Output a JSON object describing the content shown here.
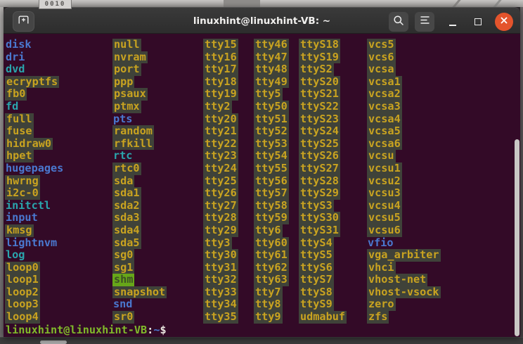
{
  "desktop": {
    "wallpaper_label": "0010"
  },
  "window": {
    "title": "linuxhint@linuxhint-VB: ~"
  },
  "colors": {
    "terminal_bg": "#330a27",
    "titlebar_top": "#3a3a3a",
    "titlebar_bottom": "#2d2d2d",
    "close_button": "#e4542c",
    "dir": "#4a78cf",
    "link": "#2aa5ad",
    "device": "#c9a320",
    "device_bg": "#3f4239",
    "ow_fg": "#3c5024",
    "ow_bg": "#67a619",
    "prompt_green": "#80b92a",
    "prompt_fg": "#e9e5df"
  },
  "terminal": {
    "type_legend": {
      "d": "directory",
      "l": "symlink",
      "b": "device",
      "o": "world-writable-dir"
    },
    "columns": [
      {
        "entries": [
          {
            "text": "disk",
            "type": "d"
          },
          {
            "text": "dri",
            "type": "d"
          },
          {
            "text": "dvd",
            "type": "l"
          },
          {
            "text": "ecryptfs",
            "type": "b"
          },
          {
            "text": "fb0",
            "type": "b"
          },
          {
            "text": "fd",
            "type": "l"
          },
          {
            "text": "full",
            "type": "b"
          },
          {
            "text": "fuse",
            "type": "b"
          },
          {
            "text": "hidraw0",
            "type": "b"
          },
          {
            "text": "hpet",
            "type": "b"
          },
          {
            "text": "hugepages",
            "type": "d"
          },
          {
            "text": "hwrng",
            "type": "b"
          },
          {
            "text": "i2c-0",
            "type": "b"
          },
          {
            "text": "initctl",
            "type": "l"
          },
          {
            "text": "input",
            "type": "d"
          },
          {
            "text": "kmsg",
            "type": "b"
          },
          {
            "text": "lightnvm",
            "type": "d"
          },
          {
            "text": "log",
            "type": "l"
          },
          {
            "text": "loop0",
            "type": "b"
          },
          {
            "text": "loop1",
            "type": "b"
          },
          {
            "text": "loop2",
            "type": "b"
          },
          {
            "text": "loop3",
            "type": "b"
          },
          {
            "text": "loop4",
            "type": "b"
          }
        ]
      },
      {
        "entries": [
          {
            "text": "null",
            "type": "b"
          },
          {
            "text": "nvram",
            "type": "b"
          },
          {
            "text": "port",
            "type": "b"
          },
          {
            "text": "ppp",
            "type": "b"
          },
          {
            "text": "psaux",
            "type": "b"
          },
          {
            "text": "ptmx",
            "type": "b"
          },
          {
            "text": "pts",
            "type": "d"
          },
          {
            "text": "random",
            "type": "b"
          },
          {
            "text": "rfkill",
            "type": "b"
          },
          {
            "text": "rtc",
            "type": "l"
          },
          {
            "text": "rtc0",
            "type": "b"
          },
          {
            "text": "sda",
            "type": "b"
          },
          {
            "text": "sda1",
            "type": "b"
          },
          {
            "text": "sda2",
            "type": "b"
          },
          {
            "text": "sda3",
            "type": "b"
          },
          {
            "text": "sda4",
            "type": "b"
          },
          {
            "text": "sda5",
            "type": "b"
          },
          {
            "text": "sg0",
            "type": "b"
          },
          {
            "text": "sg1",
            "type": "b"
          },
          {
            "text": "shm",
            "type": "o"
          },
          {
            "text": "snapshot",
            "type": "b"
          },
          {
            "text": "snd",
            "type": "d"
          },
          {
            "text": "sr0",
            "type": "b"
          }
        ]
      },
      {
        "entries": [
          {
            "text": "tty15",
            "type": "b"
          },
          {
            "text": "tty16",
            "type": "b"
          },
          {
            "text": "tty17",
            "type": "b"
          },
          {
            "text": "tty18",
            "type": "b"
          },
          {
            "text": "tty19",
            "type": "b"
          },
          {
            "text": "tty2",
            "type": "b"
          },
          {
            "text": "tty20",
            "type": "b"
          },
          {
            "text": "tty21",
            "type": "b"
          },
          {
            "text": "tty22",
            "type": "b"
          },
          {
            "text": "tty23",
            "type": "b"
          },
          {
            "text": "tty24",
            "type": "b"
          },
          {
            "text": "tty25",
            "type": "b"
          },
          {
            "text": "tty26",
            "type": "b"
          },
          {
            "text": "tty27",
            "type": "b"
          },
          {
            "text": "tty28",
            "type": "b"
          },
          {
            "text": "tty29",
            "type": "b"
          },
          {
            "text": "tty3",
            "type": "b"
          },
          {
            "text": "tty30",
            "type": "b"
          },
          {
            "text": "tty31",
            "type": "b"
          },
          {
            "text": "tty32",
            "type": "b"
          },
          {
            "text": "tty33",
            "type": "b"
          },
          {
            "text": "tty34",
            "type": "b"
          },
          {
            "text": "tty35",
            "type": "b"
          }
        ]
      },
      {
        "entries": [
          {
            "text": "tty46",
            "type": "b"
          },
          {
            "text": "tty47",
            "type": "b"
          },
          {
            "text": "tty48",
            "type": "b"
          },
          {
            "text": "tty49",
            "type": "b"
          },
          {
            "text": "tty5",
            "type": "b"
          },
          {
            "text": "tty50",
            "type": "b"
          },
          {
            "text": "tty51",
            "type": "b"
          },
          {
            "text": "tty52",
            "type": "b"
          },
          {
            "text": "tty53",
            "type": "b"
          },
          {
            "text": "tty54",
            "type": "b"
          },
          {
            "text": "tty55",
            "type": "b"
          },
          {
            "text": "tty56",
            "type": "b"
          },
          {
            "text": "tty57",
            "type": "b"
          },
          {
            "text": "tty58",
            "type": "b"
          },
          {
            "text": "tty59",
            "type": "b"
          },
          {
            "text": "tty6",
            "type": "b"
          },
          {
            "text": "tty60",
            "type": "b"
          },
          {
            "text": "tty61",
            "type": "b"
          },
          {
            "text": "tty62",
            "type": "b"
          },
          {
            "text": "tty63",
            "type": "b"
          },
          {
            "text": "tty7",
            "type": "b"
          },
          {
            "text": "tty8",
            "type": "b"
          },
          {
            "text": "tty9",
            "type": "b"
          }
        ]
      },
      {
        "entries": [
          {
            "text": "ttyS18",
            "type": "b"
          },
          {
            "text": "ttyS19",
            "type": "b"
          },
          {
            "text": "ttyS2",
            "type": "b"
          },
          {
            "text": "ttyS20",
            "type": "b"
          },
          {
            "text": "ttyS21",
            "type": "b"
          },
          {
            "text": "ttyS22",
            "type": "b"
          },
          {
            "text": "ttyS23",
            "type": "b"
          },
          {
            "text": "ttyS24",
            "type": "b"
          },
          {
            "text": "ttyS25",
            "type": "b"
          },
          {
            "text": "ttyS26",
            "type": "b"
          },
          {
            "text": "ttyS27",
            "type": "b"
          },
          {
            "text": "ttyS28",
            "type": "b"
          },
          {
            "text": "ttyS29",
            "type": "b"
          },
          {
            "text": "ttyS3",
            "type": "b"
          },
          {
            "text": "ttyS30",
            "type": "b"
          },
          {
            "text": "ttyS31",
            "type": "b"
          },
          {
            "text": "ttyS4",
            "type": "b"
          },
          {
            "text": "ttyS5",
            "type": "b"
          },
          {
            "text": "ttyS6",
            "type": "b"
          },
          {
            "text": "ttyS7",
            "type": "b"
          },
          {
            "text": "ttyS8",
            "type": "b"
          },
          {
            "text": "ttyS9",
            "type": "b"
          },
          {
            "text": "udmabuf",
            "type": "b"
          }
        ]
      },
      {
        "entries": [
          {
            "text": "vcs5",
            "type": "b"
          },
          {
            "text": "vcs6",
            "type": "b"
          },
          {
            "text": "vcsa",
            "type": "b"
          },
          {
            "text": "vcsa1",
            "type": "b"
          },
          {
            "text": "vcsa2",
            "type": "b"
          },
          {
            "text": "vcsa3",
            "type": "b"
          },
          {
            "text": "vcsa4",
            "type": "b"
          },
          {
            "text": "vcsa5",
            "type": "b"
          },
          {
            "text": "vcsa6",
            "type": "b"
          },
          {
            "text": "vcsu",
            "type": "b"
          },
          {
            "text": "vcsu1",
            "type": "b"
          },
          {
            "text": "vcsu2",
            "type": "b"
          },
          {
            "text": "vcsu3",
            "type": "b"
          },
          {
            "text": "vcsu4",
            "type": "b"
          },
          {
            "text": "vcsu5",
            "type": "b"
          },
          {
            "text": "vcsu6",
            "type": "b"
          },
          {
            "text": "vfio",
            "type": "d"
          },
          {
            "text": "vga_arbiter",
            "type": "b"
          },
          {
            "text": "vhci",
            "type": "b"
          },
          {
            "text": "vhost-net",
            "type": "b"
          },
          {
            "text": "vhost-vsock",
            "type": "b"
          },
          {
            "text": "zero",
            "type": "b"
          },
          {
            "text": "zfs",
            "type": "b"
          }
        ]
      }
    ],
    "prompt": {
      "user_host": "linuxhint@linuxhint-VB",
      "colon": ":",
      "path": "~",
      "symbol": "$"
    }
  }
}
